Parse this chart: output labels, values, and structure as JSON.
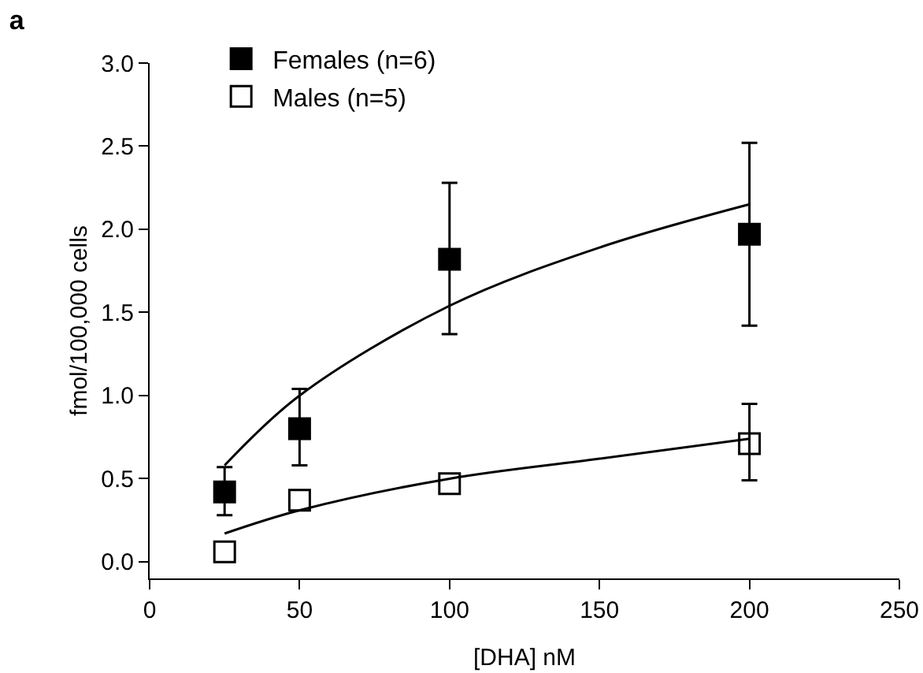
{
  "chart_data": {
    "type": "scatter",
    "title": "a",
    "xlabel": "[DHA] nM",
    "ylabel": "fmol/100,000 cells",
    "x": [
      25,
      50,
      100,
      200
    ],
    "series": [
      {
        "name": "Females (n=6)",
        "color": "#000000",
        "values": [
          0.42,
          0.8,
          1.82,
          1.97
        ],
        "errors": [
          [
            0.28,
            0.57
          ],
          [
            0.58,
            1.04
          ],
          [
            1.37,
            2.28
          ],
          [
            1.42,
            2.52
          ]
        ]
      },
      {
        "name": "Males (n=5)",
        "color": "#000000",
        "marker": "square-open",
        "values": [
          0.06,
          0.37,
          0.47,
          0.71
        ],
        "errors": [
          null,
          null,
          null,
          [
            0.49,
            0.95
          ]
        ]
      },
      {
        "type": "line",
        "color": "#000000",
        "marker": "none",
        "x": [
          25,
          50,
          100,
          150,
          200
        ],
        "values": [
          0.58,
          1.0,
          1.54,
          1.89,
          2.15
        ]
      },
      {
        "type": "line",
        "color": "#000000",
        "marker": "none",
        "x": [
          25,
          50,
          100,
          150,
          200
        ],
        "values": [
          0.17,
          0.31,
          0.5,
          0.62,
          0.74
        ]
      }
    ],
    "xlim": [
      0,
      250
    ],
    "xticks": [
      0,
      50,
      100,
      150,
      200,
      250
    ],
    "ylim": [
      -0.1,
      3.0
    ],
    "yticks": [
      {
        "value": 0,
        "label": "0.0"
      },
      0.5,
      {
        "value": 1,
        "label": "1.0"
      },
      1.5,
      {
        "value": 2,
        "label": "2.0"
      },
      2.5,
      {
        "value": 3,
        "label": "3.0"
      }
    ],
    "marker": "square",
    "grid": false,
    "legend": "top left"
  }
}
